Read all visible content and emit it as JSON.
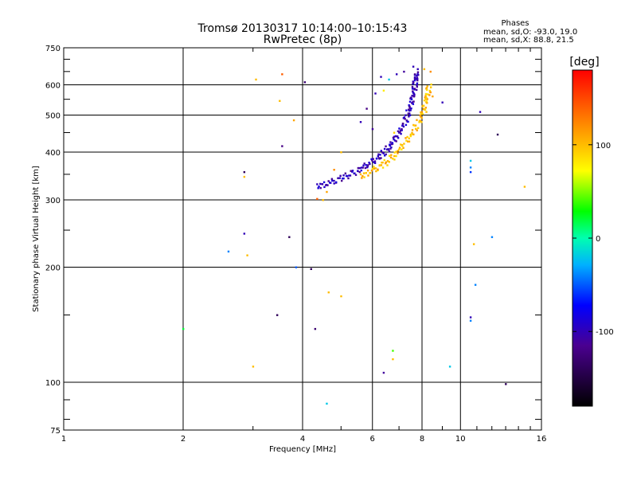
{
  "chart_data": {
    "type": "scatter",
    "title": "Tromsø 20130317 10:14:00–10:15:43",
    "subtitle": "RwPretec (8p)",
    "stats_title": "Phases",
    "stats_line1": "mean, sd,O: -93.0, 19.0",
    "stats_line2": "mean, sd,X:  88.8, 21.5",
    "xlabel": "Frequency [MHz]",
    "ylabel": "Stationary phase Virtual Height [km]",
    "x_scale": "log",
    "y_scale": "log",
    "xlim": [
      1,
      16
    ],
    "ylim": [
      75,
      750
    ],
    "x_ticks": [
      1,
      2,
      4,
      6,
      8,
      10,
      16
    ],
    "x_tick_labels": [
      "1",
      "2",
      "4",
      "6",
      "8",
      "10",
      "16"
    ],
    "y_ticks": [
      75,
      100,
      200,
      300,
      400,
      500,
      600,
      750
    ],
    "y_tick_labels": [
      "75",
      "100",
      "200",
      "300",
      "400",
      "500",
      "600",
      "750"
    ],
    "grid": true,
    "colorbar": {
      "label": "[deg]",
      "range": [
        -180,
        180
      ],
      "ticks": [
        100,
        0,
        -100
      ],
      "tick_labels": [
        "100",
        "0",
        "-100"
      ]
    },
    "points": [
      {
        "x": 6.3,
        "y": 630,
        "phase": -100
      },
      {
        "x": 6.6,
        "y": 620,
        "phase": -20
      },
      {
        "x": 6.9,
        "y": 640,
        "phase": -100
      },
      {
        "x": 7.2,
        "y": 650,
        "phase": -110
      },
      {
        "x": 7.6,
        "y": 670,
        "phase": -100
      },
      {
        "x": 7.8,
        "y": 660,
        "phase": -100
      },
      {
        "x": 8.1,
        "y": 660,
        "phase": 100
      },
      {
        "x": 8.4,
        "y": 650,
        "phase": 120
      },
      {
        "x": 6.4,
        "y": 580,
        "phase": 80
      },
      {
        "x": 6.1,
        "y": 570,
        "phase": -100
      },
      {
        "x": 5.8,
        "y": 520,
        "phase": -120
      },
      {
        "x": 5.6,
        "y": 480,
        "phase": -100
      },
      {
        "x": 6.0,
        "y": 460,
        "phase": -110
      },
      {
        "x": 6.8,
        "y": 450,
        "phase": 90
      },
      {
        "x": 8.2,
        "y": 510,
        "phase": 100
      },
      {
        "x": 8.5,
        "y": 560,
        "phase": 110
      },
      {
        "x": 9.0,
        "y": 540,
        "phase": -100
      },
      {
        "x": 3.05,
        "y": 620,
        "phase": 100
      },
      {
        "x": 3.55,
        "y": 640,
        "phase": 140
      },
      {
        "x": 4.05,
        "y": 610,
        "phase": -130
      },
      {
        "x": 3.5,
        "y": 545,
        "phase": 100
      },
      {
        "x": 3.8,
        "y": 485,
        "phase": 110
      },
      {
        "x": 3.55,
        "y": 415,
        "phase": -120
      },
      {
        "x": 2.85,
        "y": 355,
        "phase": -140
      },
      {
        "x": 2.85,
        "y": 345,
        "phase": 100
      },
      {
        "x": 2.85,
        "y": 245,
        "phase": -100
      },
      {
        "x": 2.6,
        "y": 220,
        "phase": -40
      },
      {
        "x": 2.9,
        "y": 215,
        "phase": 100
      },
      {
        "x": 3.7,
        "y": 240,
        "phase": -140
      },
      {
        "x": 3.85,
        "y": 200,
        "phase": -50
      },
      {
        "x": 4.2,
        "y": 198,
        "phase": -140
      },
      {
        "x": 3.45,
        "y": 150,
        "phase": -140
      },
      {
        "x": 4.3,
        "y": 138,
        "phase": -130
      },
      {
        "x": 4.65,
        "y": 172,
        "phase": 100
      },
      {
        "x": 5.0,
        "y": 168,
        "phase": 100
      },
      {
        "x": 3.0,
        "y": 110,
        "phase": 100
      },
      {
        "x": 4.6,
        "y": 88,
        "phase": -20
      },
      {
        "x": 2.0,
        "y": 138,
        "phase": 20
      },
      {
        "x": 6.4,
        "y": 106,
        "phase": -110
      },
      {
        "x": 6.75,
        "y": 115,
        "phase": 100
      },
      {
        "x": 6.75,
        "y": 121,
        "phase": 40
      },
      {
        "x": 9.4,
        "y": 110,
        "phase": -20
      },
      {
        "x": 11.2,
        "y": 510,
        "phase": -100
      },
      {
        "x": 10.6,
        "y": 380,
        "phase": -20
      },
      {
        "x": 10.6,
        "y": 365,
        "phase": -40
      },
      {
        "x": 10.6,
        "y": 355,
        "phase": -60
      },
      {
        "x": 12.4,
        "y": 445,
        "phase": -140
      },
      {
        "x": 14.5,
        "y": 325,
        "phase": 100
      },
      {
        "x": 10.8,
        "y": 230,
        "phase": 100
      },
      {
        "x": 12.0,
        "y": 240,
        "phase": -40
      },
      {
        "x": 10.9,
        "y": 180,
        "phase": -40
      },
      {
        "x": 10.6,
        "y": 148,
        "phase": -100
      },
      {
        "x": 10.6,
        "y": 145,
        "phase": -40
      },
      {
        "x": 13.0,
        "y": 99,
        "phase": -140
      },
      {
        "x": 5.0,
        "y": 400,
        "phase": 100
      },
      {
        "x": 4.8,
        "y": 360,
        "phase": 120
      },
      {
        "x": 4.5,
        "y": 300,
        "phase": 100
      },
      {
        "x": 4.35,
        "y": 302,
        "phase": 140
      },
      {
        "x": 4.6,
        "y": 315,
        "phase": 110
      }
    ],
    "o_trace": {
      "phase": -100,
      "x": [
        4.35,
        4.7,
        5.1,
        5.5,
        5.9,
        6.3,
        6.6,
        6.9,
        7.2,
        7.4,
        7.55,
        7.65,
        7.7,
        7.75
      ],
      "y": [
        325,
        333,
        345,
        358,
        374,
        392,
        412,
        440,
        472,
        510,
        548,
        585,
        620,
        645
      ]
    },
    "x_trace": {
      "phase": 100,
      "x": [
        5.6,
        6.0,
        6.4,
        6.8,
        7.2,
        7.6,
        7.9,
        8.1,
        8.25,
        8.35
      ],
      "y": [
        345,
        358,
        372,
        392,
        420,
        452,
        490,
        528,
        565,
        600
      ]
    }
  }
}
